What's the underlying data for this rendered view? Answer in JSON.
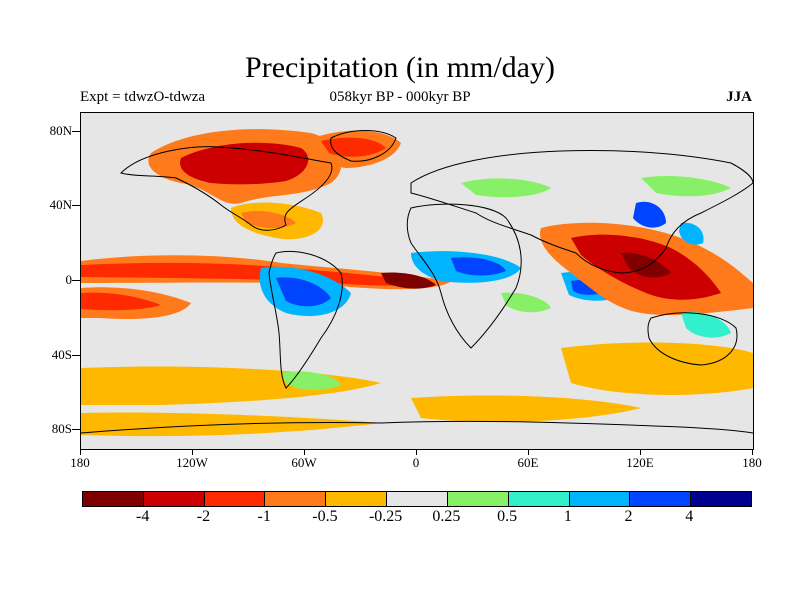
{
  "title": "Precipitation (in mm/day)",
  "expt_label": "Expt = tdwzO-tdwza",
  "period_label": "058kyr BP - 000kyr BP",
  "season_label": "JJA",
  "map": {
    "background_color": "#e6e6e6",
    "lat_labels": [
      "80N",
      "40N",
      "0",
      "40S",
      "80S"
    ],
    "lat_values": [
      80,
      40,
      0,
      -40,
      -80
    ],
    "lon_labels": [
      "180",
      "120W",
      "60W",
      "0",
      "60E",
      "120E",
      "180"
    ],
    "lon_values": [
      -180,
      -120,
      -60,
      0,
      60,
      120,
      180
    ]
  },
  "colorbar": {
    "colors": [
      "#800000",
      "#cc0000",
      "#ff2a00",
      "#ff7a1a",
      "#ffb800",
      "#e6e6e6",
      "#88f066",
      "#33f0cc",
      "#00b4ff",
      "#0044ff",
      "#000090"
    ],
    "labels": [
      "-4",
      "-2",
      "-1",
      "-0.5",
      "-0.25",
      "0.25",
      "0.5",
      "1",
      "2",
      "4"
    ]
  }
}
